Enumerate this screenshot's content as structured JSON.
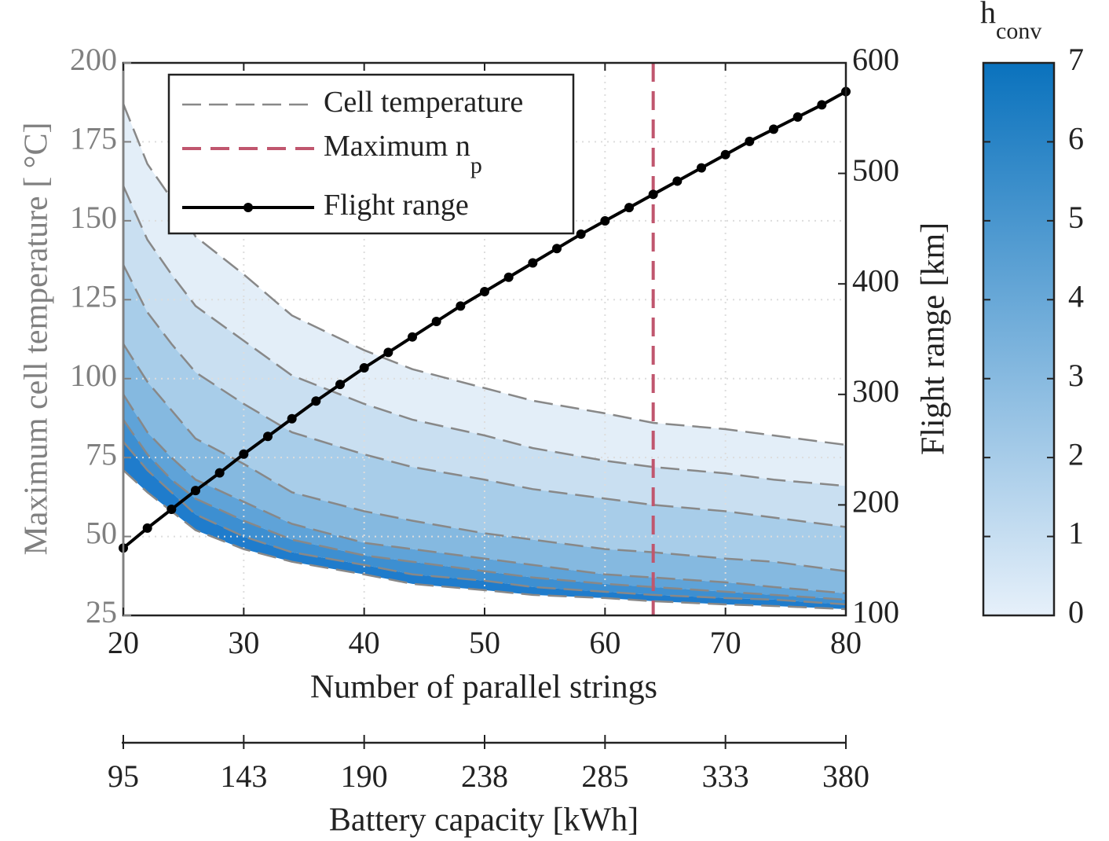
{
  "chart_data": {
    "type": "line",
    "xlabel": "Number of parallel strings",
    "ylabel": "Maximum cell temperature [ °C]",
    "y2label": "Flight range [km]",
    "xlim": [
      20,
      80
    ],
    "xticks": [
      20,
      30,
      40,
      50,
      60,
      70,
      80
    ],
    "ylim": [
      25,
      200
    ],
    "yticks": [
      25,
      50,
      75,
      100,
      125,
      150,
      175,
      200
    ],
    "y2lim": [
      100,
      600
    ],
    "y2ticks": [
      100,
      200,
      300,
      400,
      500,
      600
    ],
    "grid": true,
    "x2label": "Battery capacity [kWh]",
    "x2lim": [
      95,
      380
    ],
    "x2ticks": [
      95,
      {
        "value": 142.5,
        "label": "143"
      },
      190,
      {
        "value": 237.5,
        "label": "238"
      },
      285,
      {
        "value": 332.5,
        "label": "333"
      },
      380
    ],
    "legend": [
      {
        "label": "Cell temperature"
      },
      {
        "label": "Maximum n",
        "sub": "p"
      },
      {
        "label": "Flight range"
      }
    ],
    "legend_position": "upper left",
    "band_colors": [
      "#e3eef8",
      "#c9dff1",
      "#a8cde9",
      "#85b9e0",
      "#5fa3d8",
      "#3d8fd1",
      "#1f7ccc"
    ],
    "series": [
      {
        "color": "#888888",
        "x": [
          20,
          22,
          24,
          26,
          30,
          34,
          40,
          44,
          50,
          54,
          60,
          64,
          70,
          74,
          80
        ],
        "values": [
          187,
          168,
          157,
          145,
          133,
          120,
          109,
          103,
          97,
          93,
          89,
          86,
          84,
          82,
          79
        ]
      },
      {
        "color": "#888888",
        "x": [
          20,
          22,
          24,
          26,
          30,
          34,
          40,
          44,
          50,
          54,
          60,
          64,
          70,
          74,
          80
        ],
        "values": [
          161,
          144,
          133,
          123,
          112,
          101,
          92,
          87,
          82,
          78,
          74,
          72,
          70,
          68,
          66
        ]
      },
      {
        "color": "#888888",
        "x": [
          20,
          22,
          24,
          26,
          30,
          34,
          40,
          44,
          50,
          54,
          60,
          64,
          70,
          74,
          80
        ],
        "values": [
          136,
          121,
          111,
          102,
          92,
          83,
          76,
          72,
          68,
          65,
          62,
          60,
          58,
          56,
          53
        ]
      },
      {
        "color": "#888888",
        "x": [
          20,
          22,
          24,
          26,
          30,
          34,
          40,
          44,
          50,
          54,
          60,
          64,
          70,
          74,
          80
        ],
        "values": [
          111,
          99,
          90,
          81,
          73,
          64,
          58,
          55,
          51,
          49,
          46,
          45,
          43,
          42,
          39
        ]
      },
      {
        "color": "#888888",
        "x": [
          20,
          22,
          24,
          26,
          30,
          34,
          40,
          44,
          50,
          54,
          60,
          64,
          70,
          74,
          80
        ],
        "values": [
          95,
          83,
          75,
          68,
          61,
          54,
          48,
          46,
          43,
          41,
          38,
          37,
          35.5,
          34,
          32
        ]
      },
      {
        "color": "#888888",
        "x": [
          20,
          22,
          24,
          26,
          30,
          34,
          40,
          44,
          50,
          54,
          60,
          64,
          70,
          74,
          80
        ],
        "values": [
          87,
          76,
          68,
          62,
          55,
          49,
          44,
          42,
          39,
          37,
          35,
          34,
          32.5,
          31.5,
          30
        ]
      },
      {
        "color": "#888888",
        "x": [
          20,
          22,
          24,
          26,
          30,
          34,
          40,
          44,
          50,
          54,
          60,
          64,
          70,
          74,
          80
        ],
        "values": [
          80,
          71,
          64,
          57,
          50,
          45,
          41,
          38,
          36,
          34,
          32.5,
          31.5,
          30.5,
          30,
          28.5
        ]
      },
      {
        "color": "#888888",
        "x": [
          20,
          22,
          24,
          26,
          30,
          34,
          40,
          44,
          50,
          54,
          60,
          64,
          70,
          74,
          80
        ],
        "values": [
          71,
          64,
          58,
          52,
          46,
          42,
          38,
          35,
          33,
          31.5,
          30.5,
          29.5,
          28.5,
          28,
          27
        ]
      }
    ],
    "flight_range": {
      "name": "Flight range",
      "axis": "y2",
      "color": "#000000",
      "x": [
        20,
        22,
        24,
        26,
        28,
        30,
        32,
        34,
        36,
        38,
        40,
        42,
        44,
        46,
        48,
        50,
        52,
        54,
        56,
        58,
        60,
        62,
        64,
        66,
        68,
        70,
        72,
        74,
        76,
        78,
        80
      ],
      "values": [
        161,
        179,
        196,
        213,
        229,
        246,
        262,
        278,
        294,
        309,
        324,
        338,
        352,
        366,
        380,
        393,
        406,
        419,
        432,
        445,
        457,
        469,
        481,
        493,
        505,
        517,
        529,
        540,
        551,
        562,
        574
      ]
    },
    "reference_line": {
      "x": 64,
      "color": "#c0566e"
    },
    "colorbar": {
      "label": "h",
      "sub": "conv",
      "lim": [
        0,
        7
      ],
      "ticks": [
        0,
        1,
        2,
        3,
        4,
        5,
        6,
        7
      ],
      "colors": [
        "#e6f0fa",
        "#0a72bd"
      ]
    }
  }
}
